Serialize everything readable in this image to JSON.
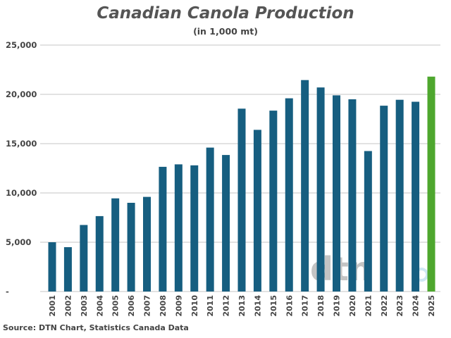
{
  "chart_data": {
    "type": "bar",
    "title": "Canadian Canola Production",
    "subtitle": "(in 1,000 mt)",
    "source": "Source: DTN Chart, Statistics Canada Data",
    "watermark": "DTN",
    "categories": [
      "2001",
      "2002",
      "2003",
      "2004",
      "2005",
      "2006",
      "2007",
      "2008",
      "2009",
      "2010",
      "2011",
      "2012",
      "2013",
      "2014",
      "2015",
      "2016",
      "2017",
      "2018",
      "2019",
      "2020",
      "2021",
      "2022",
      "2023",
      "2024",
      "2025"
    ],
    "values": [
      5000,
      4500,
      6750,
      7650,
      9450,
      9000,
      9600,
      12650,
      12900,
      12800,
      14600,
      13850,
      18550,
      16400,
      18350,
      19600,
      21450,
      20700,
      19900,
      19500,
      14250,
      18850,
      19450,
      19250,
      21800
    ],
    "ylim": [
      0,
      25000
    ],
    "yticks": [
      0,
      5000,
      10000,
      15000,
      20000,
      25000
    ],
    "ytick_labels": [
      "-",
      "5,000",
      "10,000",
      "15,000",
      "20,000",
      "25,000"
    ],
    "grid": true,
    "colors": {
      "bar": "#165e80",
      "highlight": "#4ea72e",
      "grid": "#d9d9d9"
    },
    "highlight_category": "2025"
  }
}
